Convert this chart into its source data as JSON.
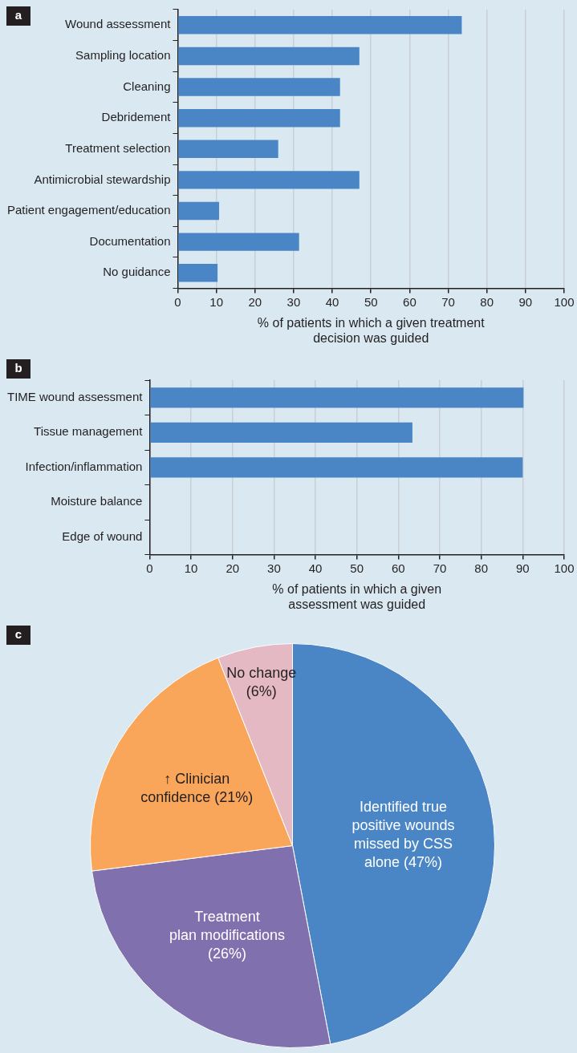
{
  "chart_data": [
    {
      "type": "bar",
      "title": "a",
      "orientation": "horizontal",
      "xlabel": "% of patients in which a given treatment\ndecision was guided",
      "categories": [
        "Wound assessment",
        "Sampling location",
        "Cleaning",
        "Debridement",
        "Treatment selection",
        "Antimicrobial stewardship",
        "Patient engagement/education",
        "Documentation",
        "No guidance"
      ],
      "values": [
        73.5,
        47,
        42,
        42,
        26,
        47,
        10.7,
        31.4,
        10.3
      ],
      "color": "#4a86c5",
      "xlim": [
        0,
        100
      ],
      "xticks": [
        0,
        10,
        20,
        30,
        40,
        50,
        60,
        70,
        80,
        90,
        100
      ],
      "grid": "x"
    },
    {
      "type": "bar",
      "title": "b",
      "orientation": "horizontal",
      "xlabel": "% of patients in which a given\nassessment was guided",
      "categories": [
        "TIME wound assessment",
        "Tissue management",
        "Infection/inflammation",
        "Moisture balance",
        "Edge of wound"
      ],
      "values": [
        90.2,
        63.4,
        90,
        0,
        0
      ],
      "color": "#4a86c5",
      "xlim": [
        0,
        100
      ],
      "xticks": [
        0,
        10,
        20,
        30,
        40,
        50,
        60,
        70,
        80,
        90,
        100
      ],
      "grid": "x"
    },
    {
      "type": "pie",
      "title": "c",
      "categories": [
        "Identified true\npositive wounds\nmissed by CSS\nalone (47%)",
        "Treatment\nplan modifications\n(26%)",
        "↑ Clinician\nconfidence (21%)",
        "No change\n(6%)"
      ],
      "values": [
        47,
        26,
        21,
        6
      ],
      "colors": [
        "#4a86c5",
        "#8070ad",
        "#f9a65a",
        "#e4b9c3"
      ]
    }
  ]
}
